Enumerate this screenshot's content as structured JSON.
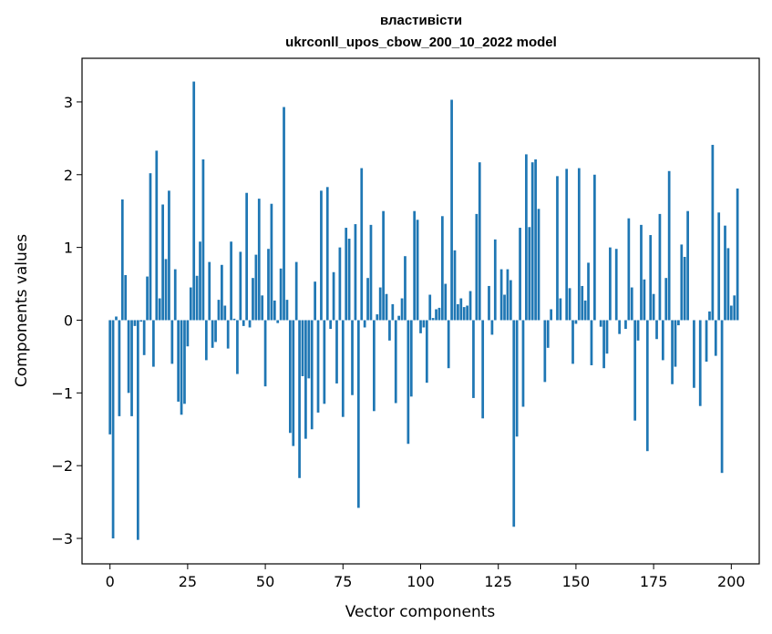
{
  "chart_data": {
    "type": "bar",
    "title_line1": "властивісти",
    "title_line2": "ukrconll_upos_cbow_200_10_2022 model",
    "xlabel": "Vector components",
    "ylabel": "Components values",
    "xlim": [
      -9,
      209
    ],
    "ylim": [
      -3.35,
      3.6
    ],
    "x_ticks": [
      0,
      25,
      50,
      75,
      100,
      125,
      150,
      175,
      200
    ],
    "y_ticks": [
      -3,
      -2,
      -1,
      0,
      1,
      2,
      3
    ],
    "y_tick_labels": [
      "−3",
      "−2",
      "−1",
      "0",
      "1",
      "2",
      "3"
    ],
    "bar_color": "#1f77b4",
    "values": [
      -1.57,
      -3.0,
      0.05,
      -1.32,
      1.66,
      0.62,
      -1.0,
      -1.32,
      -0.08,
      -3.02,
      -0.02,
      -0.48,
      0.6,
      2.02,
      -0.64,
      2.33,
      0.3,
      1.59,
      0.84,
      1.78,
      -0.6,
      0.7,
      -1.12,
      -1.3,
      -1.15,
      -0.36,
      0.45,
      3.28,
      0.61,
      1.08,
      2.21,
      -0.55,
      0.8,
      -0.38,
      -0.3,
      0.28,
      0.76,
      0.2,
      -0.39,
      1.08,
      0.02,
      -0.74,
      0.94,
      -0.08,
      1.75,
      -0.1,
      0.58,
      0.9,
      1.67,
      0.34,
      -0.91,
      0.98,
      1.6,
      0.27,
      -0.04,
      0.71,
      2.93,
      0.28,
      -1.55,
      -1.73,
      0.8,
      -2.17,
      -0.77,
      -1.63,
      -0.8,
      -1.5,
      0.53,
      -1.27,
      1.78,
      -1.15,
      1.83,
      -0.12,
      0.66,
      -0.87,
      1.0,
      -1.33,
      1.27,
      1.12,
      -1.03,
      1.32,
      -2.58,
      2.09,
      -0.1,
      0.58,
      1.31,
      -1.25,
      0.08,
      0.45,
      1.5,
      0.36,
      -0.28,
      0.22,
      -1.14,
      0.06,
      0.3,
      0.88,
      -1.7,
      -1.05,
      1.5,
      1.38,
      -0.18,
      -0.1,
      -0.86,
      0.35,
      0.03,
      0.15,
      0.17,
      1.43,
      0.5,
      -0.66,
      3.03,
      0.96,
      0.22,
      0.3,
      0.18,
      0.2,
      0.4,
      -1.07,
      1.46,
      2.17,
      -1.35,
      0.0,
      0.47,
      -0.2,
      1.11,
      0.0,
      0.7,
      0.35,
      0.7,
      0.55,
      -2.84,
      -1.6,
      1.27,
      -1.19,
      2.28,
      1.28,
      2.17,
      2.21,
      1.53,
      0.0,
      -0.85,
      -0.38,
      0.15,
      0.0,
      1.98,
      0.3,
      0.0,
      2.08,
      0.44,
      -0.6,
      -0.05,
      2.09,
      0.47,
      0.27,
      0.79,
      -0.62,
      2.0,
      0.0,
      -0.09,
      -0.66,
      -0.46,
      1.0,
      0.0,
      0.98,
      -0.19,
      0.0,
      -0.12,
      1.4,
      0.45,
      -1.38,
      -0.28,
      1.31,
      0.56,
      -1.8,
      1.17,
      0.36,
      -0.26,
      1.46,
      -0.55,
      0.58,
      2.05,
      -0.88,
      -0.64,
      -0.07,
      1.04,
      0.87,
      1.5,
      0.0,
      -0.93,
      0.0,
      -1.18,
      0.0,
      -0.57,
      0.12,
      2.41,
      -0.49,
      1.48,
      -2.1,
      1.3,
      0.99,
      0.2,
      0.34,
      1.81
    ]
  }
}
